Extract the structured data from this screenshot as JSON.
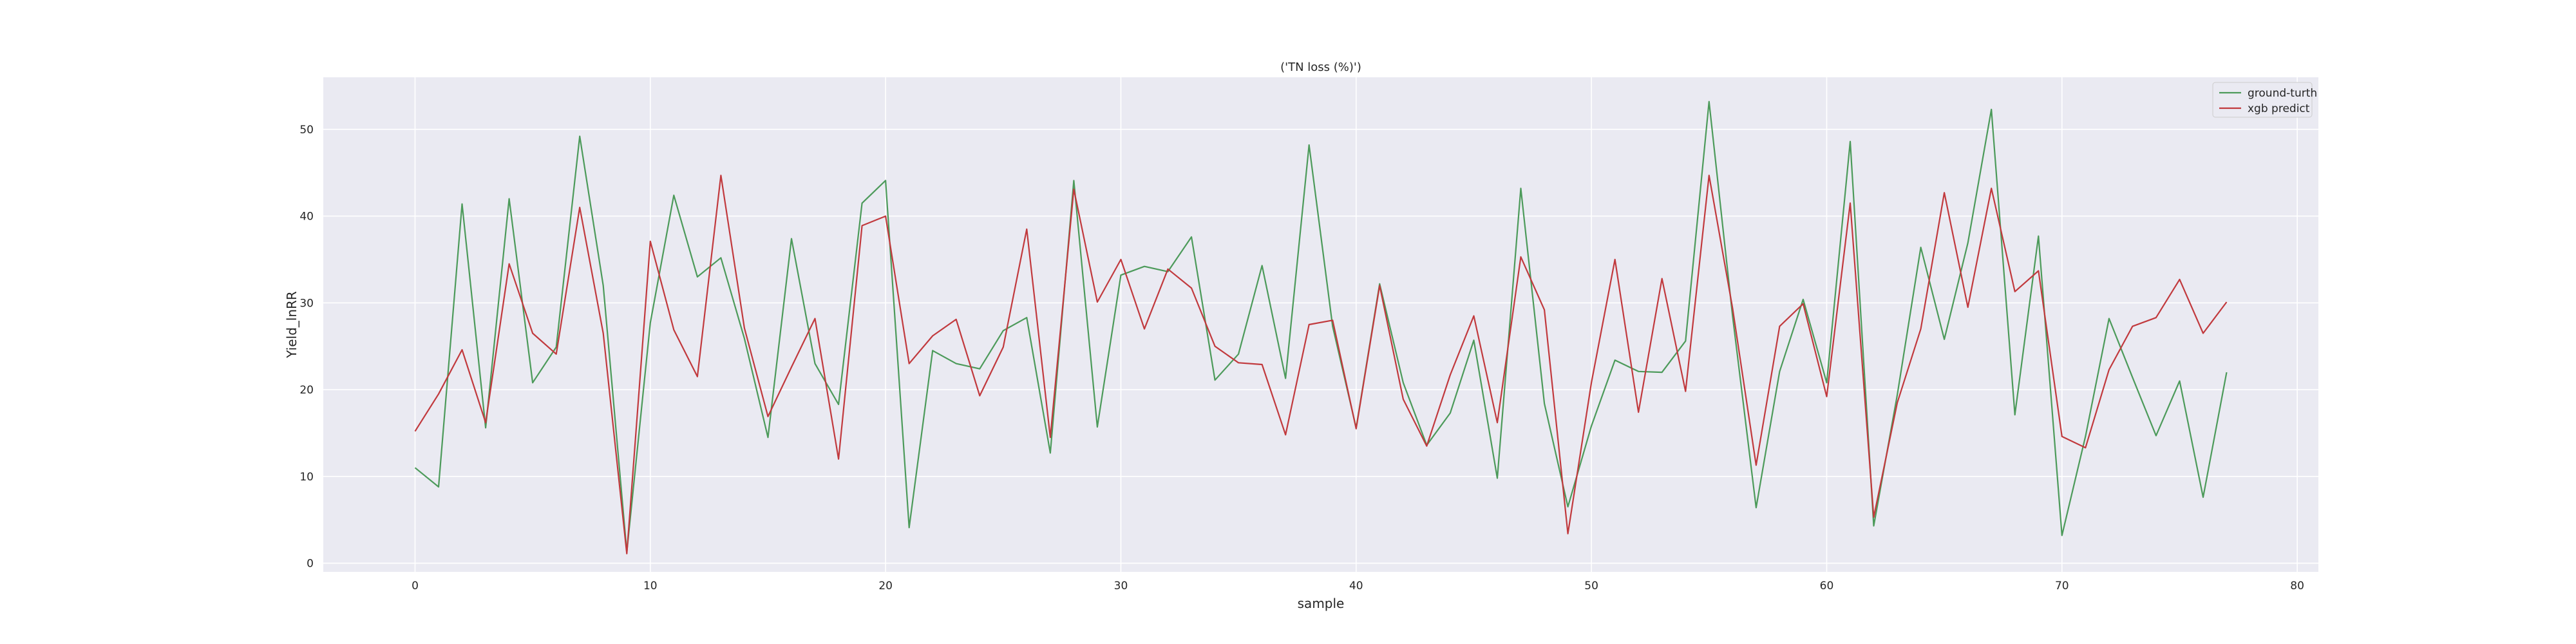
{
  "chart_data": {
    "type": "line",
    "title": "('TN loss (%)')",
    "xlabel": "sample",
    "ylabel": "Yield_lnRR",
    "xlim": [
      -3.9,
      80.9
    ],
    "ylim": [
      -1,
      56
    ],
    "xticks": [
      0,
      10,
      20,
      30,
      40,
      50,
      60,
      70,
      80
    ],
    "yticks": [
      0,
      10,
      20,
      30,
      40,
      50
    ],
    "grid": true,
    "legend_position": "top-right",
    "x": [
      0,
      1,
      2,
      3,
      4,
      5,
      6,
      7,
      8,
      9,
      10,
      11,
      12,
      13,
      14,
      15,
      16,
      17,
      18,
      19,
      20,
      21,
      22,
      23,
      24,
      25,
      26,
      27,
      28,
      29,
      30,
      31,
      32,
      33,
      34,
      35,
      36,
      37,
      38,
      39,
      40,
      41,
      42,
      43,
      44,
      45,
      46,
      47,
      48,
      49,
      50,
      51,
      52,
      53,
      54,
      55,
      56,
      57,
      58,
      59,
      60,
      61,
      62,
      63,
      64,
      65,
      66,
      67,
      68,
      69,
      70,
      71,
      72,
      73,
      74,
      75,
      76,
      77
    ],
    "series": [
      {
        "name": "ground-turth",
        "color": "#4c9a5a",
        "values": [
          11.0,
          8.8,
          41.4,
          15.6,
          42.0,
          20.8,
          24.9,
          49.2,
          32.0,
          1.3,
          27.7,
          42.4,
          33.0,
          35.2,
          25.9,
          14.5,
          37.4,
          23.0,
          18.3,
          41.5,
          44.1,
          4.1,
          24.5,
          23.0,
          22.4,
          26.8,
          28.3,
          12.7,
          44.1,
          15.7,
          33.2,
          34.2,
          33.6,
          37.6,
          21.1,
          24.1,
          34.3,
          21.3,
          48.2,
          27.3,
          15.6,
          32.2,
          20.8,
          13.6,
          17.3,
          25.7,
          9.8,
          43.2,
          18.4,
          6.5,
          15.8,
          23.4,
          22.1,
          22.0,
          25.6,
          53.2,
          28.5,
          6.4,
          22.1,
          30.4,
          20.8,
          48.6,
          4.3,
          19.4,
          36.4,
          25.8,
          36.9,
          52.3,
          17.1,
          37.7,
          3.2,
          14.6,
          28.2,
          21.4,
          14.7,
          21.0,
          7.6,
          22.0
        ]
      },
      {
        "name": "xgb predict",
        "color": "#c1393d",
        "values": [
          15.2,
          19.5,
          24.6,
          16.2,
          34.5,
          26.5,
          24.1,
          41.0,
          26.5,
          1.1,
          37.1,
          26.9,
          21.5,
          44.7,
          27.1,
          16.9,
          22.6,
          28.2,
          12.0,
          38.9,
          40.0,
          23.0,
          26.2,
          28.1,
          19.3,
          24.9,
          38.5,
          14.5,
          43.1,
          30.1,
          35.0,
          27.0,
          33.9,
          31.7,
          25.0,
          23.1,
          22.9,
          14.8,
          27.5,
          28.0,
          15.5,
          32.0,
          18.9,
          13.5,
          21.7,
          28.5,
          16.2,
          35.3,
          29.2,
          3.4,
          20.8,
          35.0,
          17.4,
          32.8,
          19.8,
          44.7,
          29.4,
          11.3,
          27.3,
          29.9,
          19.2,
          41.5,
          5.3,
          18.5,
          27.0,
          42.7,
          29.5,
          43.2,
          31.3,
          33.7,
          14.6,
          13.3,
          22.3,
          27.3,
          28.3,
          32.7,
          26.5,
          30.1
        ]
      }
    ]
  },
  "style": {
    "plot_background": "#eaeaf2",
    "grid_color": "#ffffff",
    "text_color": "#262626"
  }
}
